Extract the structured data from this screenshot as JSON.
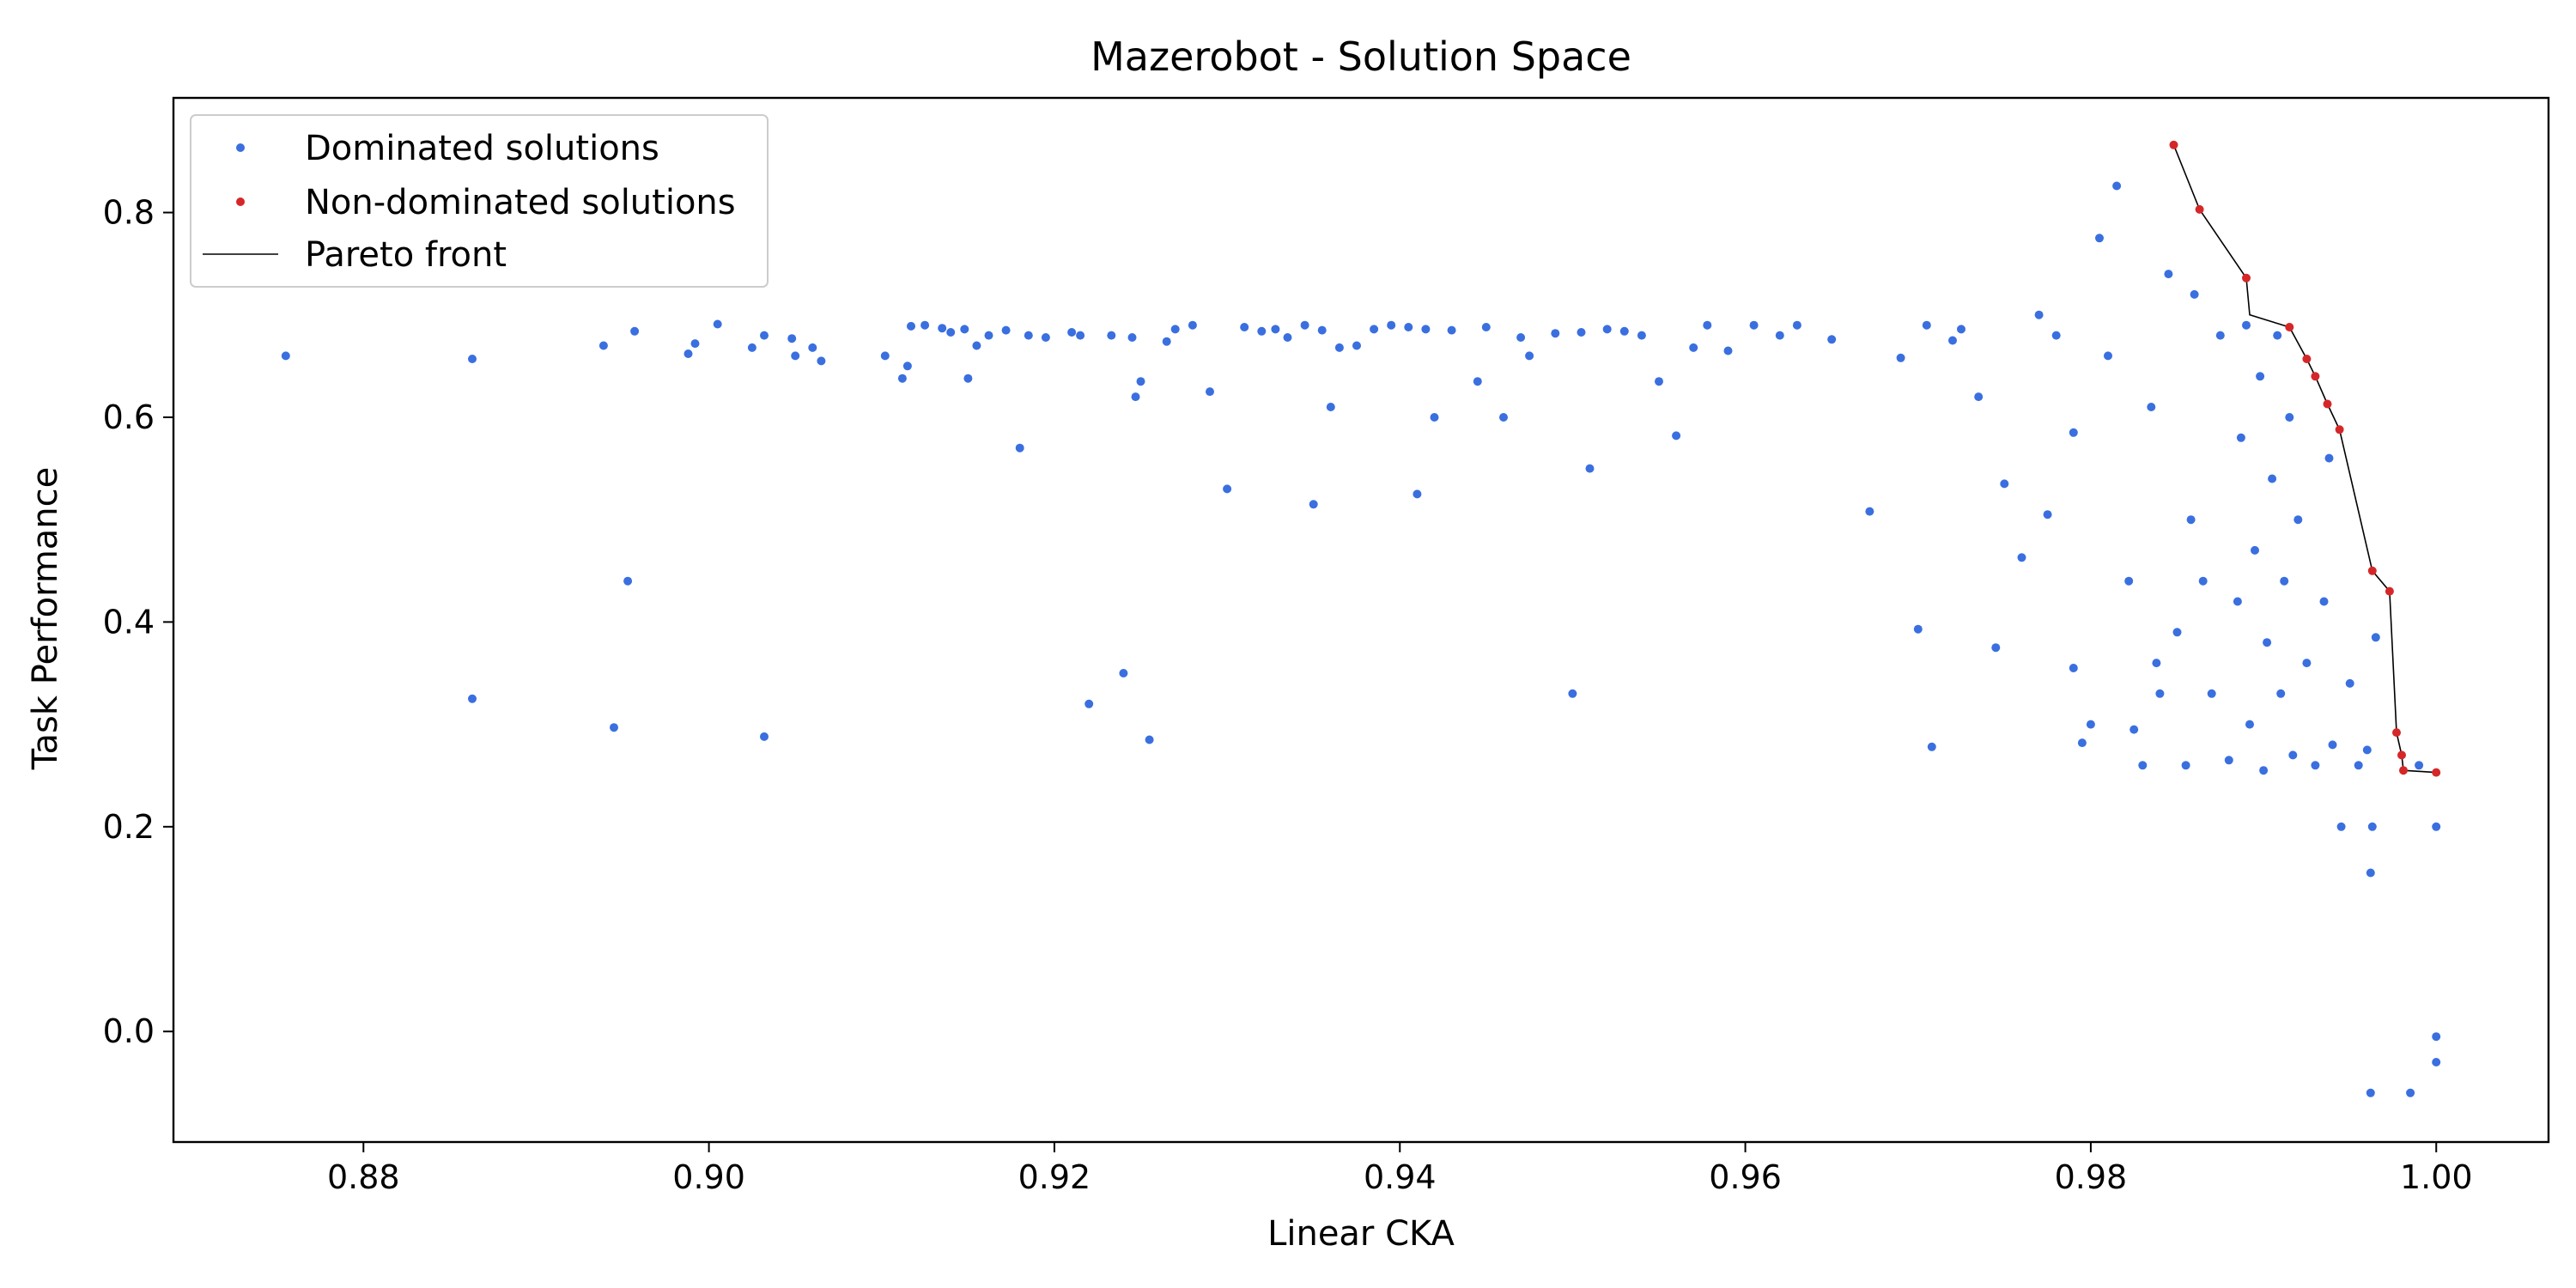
{
  "chart_data": {
    "type": "scatter",
    "title": "Mazerobot - Solution Space",
    "xlabel": "Linear CKA",
    "ylabel": "Task Performance",
    "xlim": [
      0.869,
      1.0065
    ],
    "ylim": [
      -0.108,
      0.912
    ],
    "xticks": [
      "0.88",
      "0.90",
      "0.92",
      "0.94",
      "0.96",
      "0.98",
      "1.00"
    ],
    "yticks": [
      "0.0",
      "0.2",
      "0.4",
      "0.6",
      "0.8"
    ],
    "grid": false,
    "legend_position": "upper-left",
    "colors": {
      "dominated": "#3a6fdf",
      "non_dominated": "#d62728",
      "front": "#000000"
    },
    "series": [
      {
        "name": "Dominated solutions",
        "points": [
          [
            0.8755,
            0.66
          ],
          [
            0.8863,
            0.657
          ],
          [
            0.8863,
            0.325
          ],
          [
            0.8939,
            0.67
          ],
          [
            0.8945,
            0.297
          ],
          [
            0.8953,
            0.44
          ],
          [
            0.8957,
            0.684
          ],
          [
            0.8988,
            0.662
          ],
          [
            0.8992,
            0.672
          ],
          [
            0.9005,
            0.691
          ],
          [
            0.9025,
            0.668
          ],
          [
            0.9032,
            0.68
          ],
          [
            0.9032,
            0.288
          ],
          [
            0.9048,
            0.677
          ],
          [
            0.905,
            0.66
          ],
          [
            0.906,
            0.668
          ],
          [
            0.9065,
            0.655
          ],
          [
            0.9102,
            0.66
          ],
          [
            0.9112,
            0.638
          ],
          [
            0.9115,
            0.65
          ],
          [
            0.9117,
            0.689
          ],
          [
            0.9125,
            0.69
          ],
          [
            0.9135,
            0.687
          ],
          [
            0.914,
            0.683
          ],
          [
            0.9148,
            0.686
          ],
          [
            0.915,
            0.638
          ],
          [
            0.9155,
            0.67
          ],
          [
            0.9162,
            0.68
          ],
          [
            0.9172,
            0.685
          ],
          [
            0.918,
            0.57
          ],
          [
            0.9185,
            0.68
          ],
          [
            0.9195,
            0.678
          ],
          [
            0.921,
            0.683
          ],
          [
            0.9215,
            0.68
          ],
          [
            0.922,
            0.32
          ],
          [
            0.9233,
            0.68
          ],
          [
            0.924,
            0.35
          ],
          [
            0.9245,
            0.678
          ],
          [
            0.9247,
            0.62
          ],
          [
            0.925,
            0.635
          ],
          [
            0.9255,
            0.285
          ],
          [
            0.9265,
            0.674
          ],
          [
            0.927,
            0.686
          ],
          [
            0.928,
            0.69
          ],
          [
            0.929,
            0.625
          ],
          [
            0.93,
            0.53
          ],
          [
            0.931,
            0.688
          ],
          [
            0.932,
            0.684
          ],
          [
            0.9328,
            0.686
          ],
          [
            0.9335,
            0.678
          ],
          [
            0.9345,
            0.69
          ],
          [
            0.935,
            0.515
          ],
          [
            0.9355,
            0.685
          ],
          [
            0.936,
            0.61
          ],
          [
            0.9365,
            0.668
          ],
          [
            0.9375,
            0.67
          ],
          [
            0.9385,
            0.686
          ],
          [
            0.9395,
            0.69
          ],
          [
            0.9405,
            0.688
          ],
          [
            0.941,
            0.525
          ],
          [
            0.9415,
            0.686
          ],
          [
            0.942,
            0.6
          ],
          [
            0.943,
            0.685
          ],
          [
            0.9445,
            0.635
          ],
          [
            0.945,
            0.688
          ],
          [
            0.946,
            0.6
          ],
          [
            0.947,
            0.678
          ],
          [
            0.9475,
            0.66
          ],
          [
            0.949,
            0.682
          ],
          [
            0.95,
            0.33
          ],
          [
            0.9505,
            0.683
          ],
          [
            0.951,
            0.55
          ],
          [
            0.952,
            0.686
          ],
          [
            0.953,
            0.684
          ],
          [
            0.954,
            0.68
          ],
          [
            0.955,
            0.635
          ],
          [
            0.956,
            0.582
          ],
          [
            0.957,
            0.668
          ],
          [
            0.9578,
            0.69
          ],
          [
            0.959,
            0.665
          ],
          [
            0.9605,
            0.69
          ],
          [
            0.962,
            0.68
          ],
          [
            0.963,
            0.69
          ],
          [
            0.965,
            0.676
          ],
          [
            0.9672,
            0.508
          ],
          [
            0.969,
            0.658
          ],
          [
            0.97,
            0.393
          ],
          [
            0.9705,
            0.69
          ],
          [
            0.9708,
            0.278
          ],
          [
            0.972,
            0.675
          ],
          [
            0.9725,
            0.686
          ],
          [
            0.9735,
            0.62
          ],
          [
            0.9745,
            0.375
          ],
          [
            0.975,
            0.535
          ],
          [
            0.976,
            0.463
          ],
          [
            0.977,
            0.7
          ],
          [
            0.9775,
            0.505
          ],
          [
            0.978,
            0.68
          ],
          [
            0.979,
            0.355
          ],
          [
            0.979,
            0.585
          ],
          [
            0.9795,
            0.282
          ],
          [
            0.98,
            0.3
          ],
          [
            0.9805,
            0.775
          ],
          [
            0.981,
            0.66
          ],
          [
            0.9815,
            0.826
          ],
          [
            0.9822,
            0.44
          ],
          [
            0.9825,
            0.295
          ],
          [
            0.983,
            0.26
          ],
          [
            0.9835,
            0.61
          ],
          [
            0.9838,
            0.36
          ],
          [
            0.984,
            0.33
          ],
          [
            0.9845,
            0.74
          ],
          [
            0.985,
            0.39
          ],
          [
            0.9855,
            0.26
          ],
          [
            0.9858,
            0.5
          ],
          [
            0.986,
            0.72
          ],
          [
            0.9865,
            0.44
          ],
          [
            0.987,
            0.33
          ],
          [
            0.9875,
            0.68
          ],
          [
            0.988,
            0.265
          ],
          [
            0.9885,
            0.42
          ],
          [
            0.9887,
            0.58
          ],
          [
            0.989,
            0.69
          ],
          [
            0.9892,
            0.3
          ],
          [
            0.9895,
            0.47
          ],
          [
            0.9898,
            0.64
          ],
          [
            0.99,
            0.255
          ],
          [
            0.9902,
            0.38
          ],
          [
            0.9905,
            0.54
          ],
          [
            0.9908,
            0.68
          ],
          [
            0.991,
            0.33
          ],
          [
            0.9912,
            0.44
          ],
          [
            0.9915,
            0.6
          ],
          [
            0.9917,
            0.27
          ],
          [
            0.992,
            0.5
          ],
          [
            0.9925,
            0.36
          ],
          [
            0.993,
            0.26
          ],
          [
            0.9935,
            0.42
          ],
          [
            0.9938,
            0.56
          ],
          [
            0.994,
            0.28
          ],
          [
            0.9945,
            0.2
          ],
          [
            0.995,
            0.34
          ],
          [
            0.9955,
            0.26
          ],
          [
            0.996,
            0.275
          ],
          [
            0.9962,
            0.155
          ],
          [
            0.9963,
            0.2
          ],
          [
            0.9965,
            0.385
          ],
          [
            0.9962,
            -0.06
          ],
          [
            0.9985,
            -0.06
          ],
          [
            0.999,
            0.26
          ],
          [
            1.0,
            0.2
          ],
          [
            1.0,
            -0.005
          ],
          [
            1.0,
            -0.03
          ]
        ]
      },
      {
        "name": "Non-dominated solutions",
        "points": [
          [
            0.9848,
            0.866
          ],
          [
            0.9863,
            0.803
          ],
          [
            0.989,
            0.736
          ],
          [
            0.9915,
            0.688
          ],
          [
            0.9925,
            0.657
          ],
          [
            0.993,
            0.64
          ],
          [
            0.9937,
            0.613
          ],
          [
            0.9944,
            0.588
          ],
          [
            0.9963,
            0.45
          ],
          [
            0.9973,
            0.43
          ],
          [
            0.9977,
            0.292
          ],
          [
            0.998,
            0.27
          ],
          [
            0.9981,
            0.255
          ],
          [
            1.0,
            0.253
          ]
        ]
      },
      {
        "name": "Pareto front",
        "points": [
          [
            0.9848,
            0.866
          ],
          [
            0.9863,
            0.803
          ],
          [
            0.989,
            0.736
          ],
          [
            0.9892,
            0.7
          ],
          [
            0.9915,
            0.688
          ],
          [
            0.9925,
            0.657
          ],
          [
            0.993,
            0.64
          ],
          [
            0.9937,
            0.613
          ],
          [
            0.9944,
            0.588
          ],
          [
            0.9963,
            0.45
          ],
          [
            0.9973,
            0.43
          ],
          [
            0.9977,
            0.292
          ],
          [
            0.998,
            0.27
          ],
          [
            0.9981,
            0.255
          ],
          [
            1.0,
            0.253
          ]
        ]
      }
    ]
  }
}
